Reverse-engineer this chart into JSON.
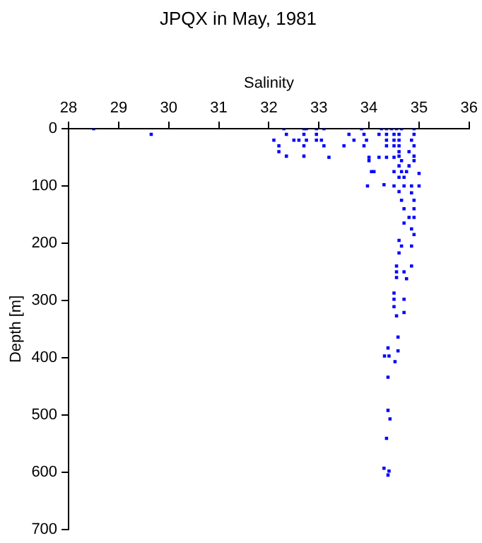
{
  "chart_data": {
    "type": "scatter",
    "title": "JPQX in May, 1981",
    "xlabel": "Salinity",
    "ylabel": "Depth [m]",
    "x": [
      28.5,
      32.3,
      32.7,
      32.75,
      32.95,
      33.1,
      33.85,
      34.25,
      34.35,
      34.45,
      34.55,
      34.65,
      34.9,
      29.65,
      32.35,
      32.7,
      32.95,
      33.6,
      33.9,
      34.2,
      34.35,
      34.5,
      34.6,
      34.9,
      32.1,
      32.5,
      32.6,
      32.75,
      32.95,
      33.05,
      33.7,
      33.95,
      34.35,
      34.5,
      34.6,
      34.85,
      32.2,
      32.7,
      33.1,
      33.5,
      33.9,
      34.35,
      34.5,
      34.6,
      34.9,
      32.2,
      34.6,
      34.8,
      32.35,
      32.7,
      33.2,
      34.0,
      34.2,
      34.35,
      34.5,
      34.6,
      34.9,
      34.0,
      34.65,
      34.9,
      34.6,
      34.8,
      34.05,
      34.1,
      34.5,
      34.65,
      34.75,
      35.0,
      34.6,
      34.7,
      33.97,
      34.3,
      34.5,
      34.7,
      34.85,
      35.0,
      34.6,
      34.85,
      34.65,
      34.9,
      34.7,
      34.9,
      34.8,
      34.9,
      34.7,
      34.85,
      34.9,
      34.6,
      34.65,
      34.85,
      34.6,
      34.55,
      34.85,
      34.55,
      34.7,
      34.55,
      34.75,
      34.5,
      34.5,
      34.7,
      34.5,
      34.55,
      34.7,
      34.58,
      34.38,
      34.58,
      34.31,
      34.4,
      34.52,
      34.38,
      34.38,
      34.42,
      34.35,
      34.3,
      34.4,
      34.38
    ],
    "values": [
      0,
      0,
      0,
      0,
      0,
      0,
      0,
      0,
      0,
      0,
      0,
      0,
      0,
      10,
      10,
      10,
      10,
      10,
      10,
      10,
      10,
      10,
      10,
      10,
      20,
      20,
      20,
      20,
      20,
      20,
      20,
      20,
      20,
      20,
      20,
      20,
      30,
      30,
      30,
      30,
      30,
      30,
      30,
      30,
      30,
      40,
      40,
      40,
      48,
      48,
      50,
      50,
      50,
      50,
      50,
      48,
      48,
      56,
      56,
      56,
      65,
      65,
      75,
      75,
      75,
      75,
      75,
      78,
      85,
      85,
      100,
      98,
      100,
      100,
      100,
      100,
      110,
      112,
      125,
      125,
      140,
      140,
      155,
      155,
      165,
      175,
      185,
      195,
      205,
      205,
      217,
      240,
      240,
      250,
      250,
      260,
      262,
      287,
      298,
      298,
      311,
      327,
      321,
      364,
      383,
      388,
      397,
      397,
      407,
      434,
      492,
      507,
      541,
      593,
      598,
      605
    ],
    "color": "#0000ff",
    "marker": "square",
    "xlim": [
      28,
      36
    ],
    "xticks": [
      28,
      29,
      30,
      31,
      32,
      33,
      34,
      35,
      36
    ],
    "ylim": [
      700,
      0
    ],
    "yticks": [
      0,
      100,
      200,
      300,
      400,
      500,
      600,
      700
    ],
    "grid": false,
    "legend": false
  }
}
